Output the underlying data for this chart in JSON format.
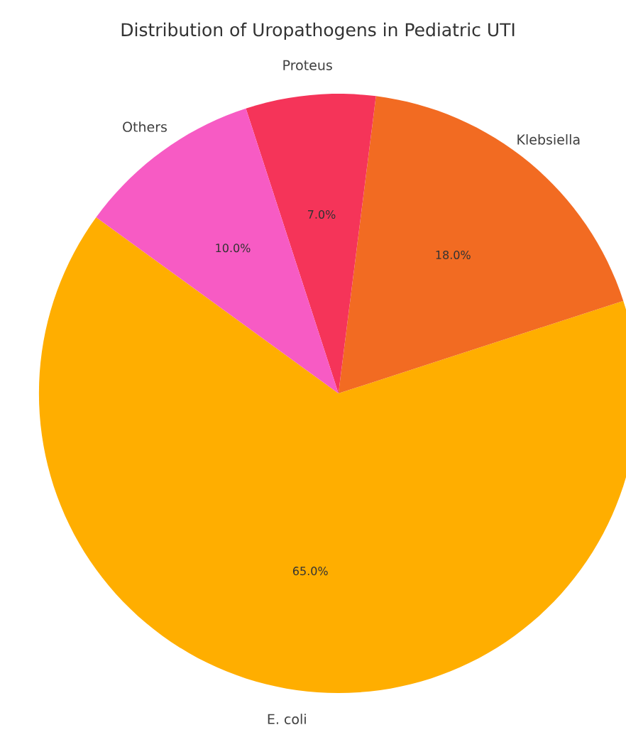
{
  "chart_data": {
    "type": "pie",
    "title": "Distribution of Uropathogens in Pediatric UTI",
    "categories": [
      "E. coli",
      "Klebsiella",
      "Proteus",
      "Others"
    ],
    "values": [
      65,
      18,
      7,
      10
    ],
    "colors": [
      "#ffae00",
      "#f26b22",
      "#f53459",
      "#f75bc4"
    ],
    "value_labels": [
      "65.0%",
      "18.0%",
      "7.0%",
      "10.0%"
    ]
  }
}
